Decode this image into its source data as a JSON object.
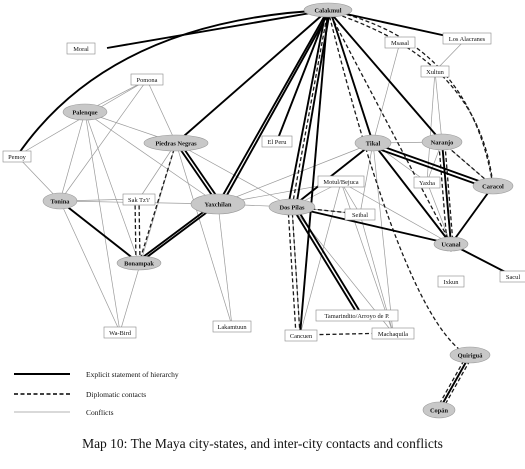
{
  "caption": "Map 10: The Maya city-states, and inter-city contacts and conflicts",
  "legend": {
    "hierarchy": "Explicit statement of hierarchy",
    "diplomatic": "Diplomatic contacts",
    "conflicts": "Conflicts"
  },
  "nodes": {
    "calakmul": "Calakmul",
    "moral": "Moral",
    "msasal": "Msasal",
    "losalacranes": "Los Alacranes",
    "pomona": "Pomona",
    "xultun": "Xultun",
    "palenque": "Palenque",
    "piedrasnegras": "Piedras Negras",
    "elperu": "El Peru",
    "tikal": "Tikal",
    "naranjo": "Naranjo",
    "pemoy": "Pemoy",
    "caracol": "Caracol",
    "yaxha": "Yaxha",
    "motul": "Motul/Bejuca",
    "saktzi": "Sak Tz'i'",
    "tonina": "Tonina",
    "yaxchilan": "Yaxchilan",
    "dospilas": "Dos Pilas",
    "seibal": "Seibal",
    "ucanal": "Ucanal",
    "bonampak": "Bonampak",
    "ixkun": "Ixkun",
    "sacul": "Sacul",
    "wabird": "Wa-Bird",
    "lakamtuun": "Lakamtuun",
    "tamarindito": "Tamarindito/Arroyo de P.",
    "cancuen": "Cancuen",
    "machaquila": "Machaquila",
    "quirigua": "Quiriguá",
    "copan": "Copán"
  }
}
